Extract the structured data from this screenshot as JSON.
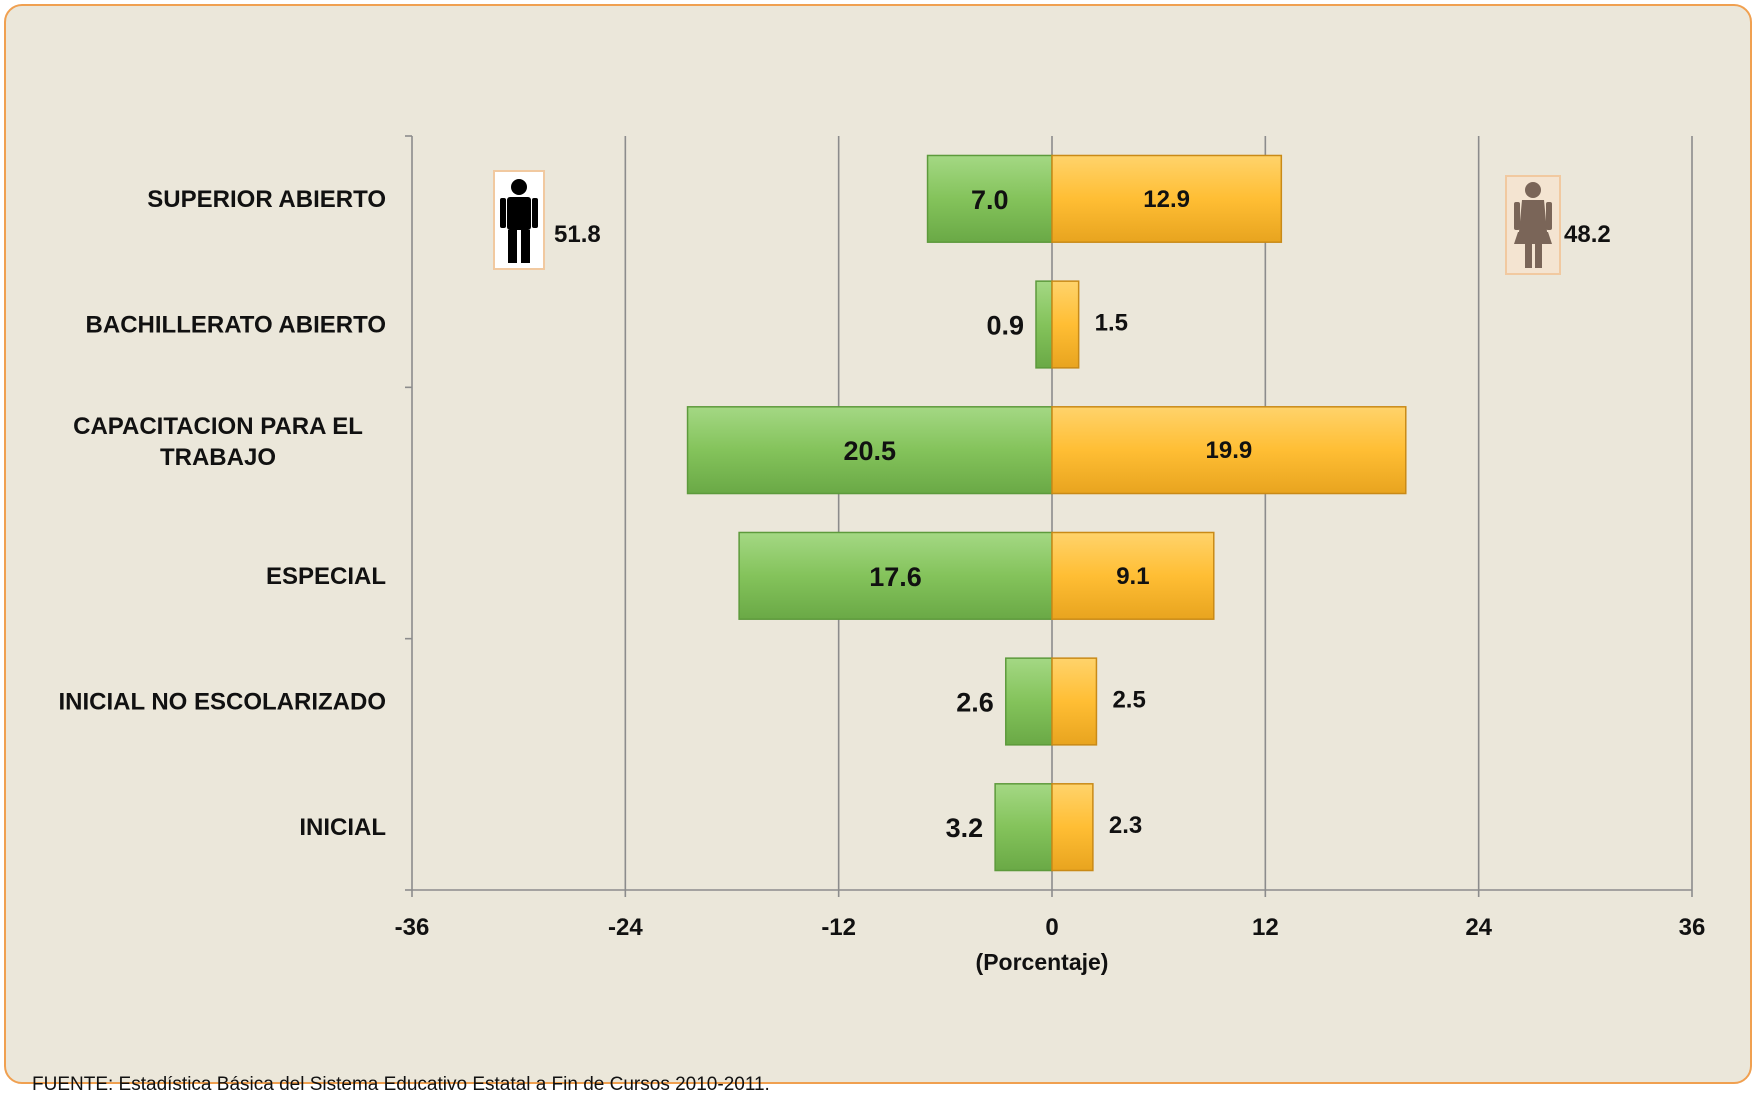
{
  "chart_data": {
    "type": "bar",
    "orientation": "horizontal",
    "layout": "population-pyramid",
    "categories": [
      "SUPERIOR ABIERTO",
      "BACHILLERATO ABIERTO",
      "CAPACITACION  PARA EL TRABAJO",
      "ESPECIAL",
      "INICIAL NO ESCOLARIZADO",
      "INICIAL"
    ],
    "series": [
      {
        "values": [
          7.0,
          0.9,
          20.5,
          17.6,
          2.6,
          3.2
        ],
        "color": "#84c35b",
        "side": "left"
      },
      {
        "values": [
          12.9,
          1.5,
          19.9,
          9.1,
          2.5,
          2.3
        ],
        "color": "#ffbe34",
        "side": "right"
      }
    ],
    "value_labels": {
      "left": [
        "7.0",
        "0.9",
        "20.5",
        "17.6",
        "2.6",
        "3.2"
      ],
      "right": [
        "12.9",
        "1.5",
        "19.9",
        "9.1",
        "2.5",
        "2.3"
      ]
    },
    "xlim": [
      -36,
      36
    ],
    "xticks": [
      -36,
      -24,
      -12,
      0,
      12,
      24,
      36
    ],
    "xtick_labels": [
      "-36",
      "-24",
      "-12",
      "0",
      "12",
      "24",
      "36"
    ],
    "xlabel": "(Porcentaje)",
    "grid": "vertical",
    "totals": {
      "male": {
        "icon": "man-icon",
        "value": "51.8"
      },
      "female": {
        "icon": "woman-icon",
        "value": "48.2"
      }
    }
  },
  "source": "FUENTE: Estadística Básica del Sistema Educativo Estatal a Fin de Cursos 2010-2011.",
  "colors": {
    "background": "#ebe7da",
    "border": "#f0a050",
    "grid": "#8c8c8c",
    "male_bar": "#84c35b",
    "female_bar": "#ffbe34"
  }
}
